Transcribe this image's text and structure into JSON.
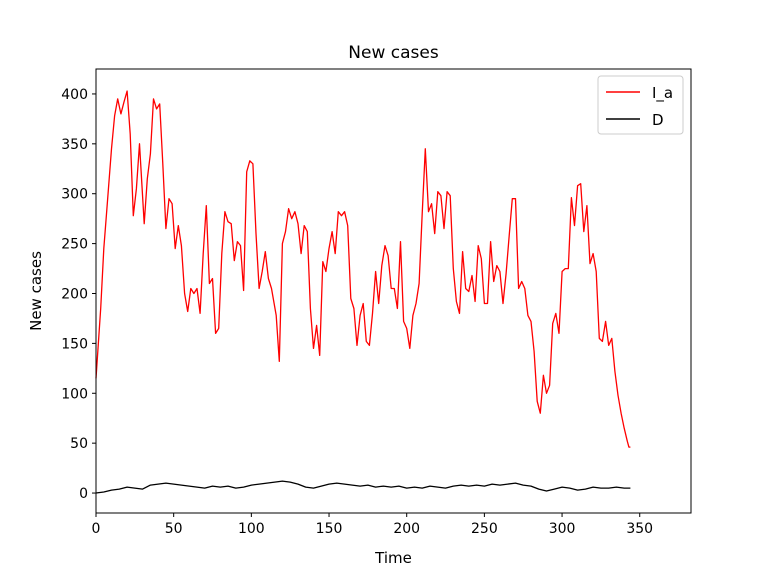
{
  "chart_data": {
    "type": "line",
    "title": "New cases",
    "xlabel": "Time",
    "ylabel": "New cases",
    "xlim": [
      0,
      383
    ],
    "ylim": [
      -20,
      425
    ],
    "xticks": [
      0,
      50,
      100,
      150,
      200,
      250,
      300,
      350
    ],
    "yticks": [
      0,
      50,
      100,
      150,
      200,
      250,
      300,
      350,
      400
    ],
    "grid": false,
    "legend_position": "top-right",
    "colors": {
      "I_a": "#ff0000",
      "D": "#000000"
    },
    "series": [
      {
        "name": "I_a",
        "color": "#ff0000",
        "points": [
          [
            0,
            115
          ],
          [
            3,
            185
          ],
          [
            5,
            245
          ],
          [
            7,
            285
          ],
          [
            10,
            345
          ],
          [
            12,
            378
          ],
          [
            14,
            395
          ],
          [
            16,
            380
          ],
          [
            18,
            392
          ],
          [
            20,
            403
          ],
          [
            22,
            360
          ],
          [
            24,
            278
          ],
          [
            26,
            305
          ],
          [
            28,
            350
          ],
          [
            31,
            270
          ],
          [
            33,
            315
          ],
          [
            35,
            340
          ],
          [
            37,
            395
          ],
          [
            39,
            385
          ],
          [
            41,
            390
          ],
          [
            43,
            330
          ],
          [
            45,
            265
          ],
          [
            47,
            295
          ],
          [
            49,
            290
          ],
          [
            51,
            245
          ],
          [
            53,
            268
          ],
          [
            55,
            248
          ],
          [
            57,
            200
          ],
          [
            59,
            182
          ],
          [
            61,
            205
          ],
          [
            63,
            200
          ],
          [
            65,
            205
          ],
          [
            67,
            180
          ],
          [
            69,
            240
          ],
          [
            71,
            288
          ],
          [
            73,
            210
          ],
          [
            75,
            215
          ],
          [
            77,
            160
          ],
          [
            79,
            165
          ],
          [
            81,
            240
          ],
          [
            83,
            282
          ],
          [
            85,
            272
          ],
          [
            87,
            270
          ],
          [
            89,
            233
          ],
          [
            91,
            252
          ],
          [
            93,
            248
          ],
          [
            95,
            203
          ],
          [
            97,
            322
          ],
          [
            99,
            333
          ],
          [
            101,
            330
          ],
          [
            103,
            260
          ],
          [
            105,
            205
          ],
          [
            107,
            222
          ],
          [
            109,
            242
          ],
          [
            111,
            215
          ],
          [
            113,
            205
          ],
          [
            116,
            178
          ],
          [
            118,
            132
          ],
          [
            120,
            250
          ],
          [
            122,
            262
          ],
          [
            124,
            285
          ],
          [
            126,
            275
          ],
          [
            128,
            282
          ],
          [
            130,
            270
          ],
          [
            132,
            240
          ],
          [
            134,
            268
          ],
          [
            136,
            262
          ],
          [
            138,
            185
          ],
          [
            140,
            145
          ],
          [
            142,
            168
          ],
          [
            144,
            138
          ],
          [
            146,
            232
          ],
          [
            148,
            222
          ],
          [
            150,
            245
          ],
          [
            152,
            262
          ],
          [
            154,
            240
          ],
          [
            156,
            282
          ],
          [
            158,
            278
          ],
          [
            160,
            282
          ],
          [
            162,
            268
          ],
          [
            164,
            195
          ],
          [
            166,
            185
          ],
          [
            168,
            148
          ],
          [
            170,
            178
          ],
          [
            172,
            190
          ],
          [
            174,
            152
          ],
          [
            176,
            148
          ],
          [
            178,
            180
          ],
          [
            180,
            222
          ],
          [
            182,
            190
          ],
          [
            184,
            228
          ],
          [
            186,
            248
          ],
          [
            188,
            238
          ],
          [
            190,
            205
          ],
          [
            192,
            205
          ],
          [
            194,
            185
          ],
          [
            196,
            252
          ],
          [
            198,
            172
          ],
          [
            200,
            165
          ],
          [
            202,
            145
          ],
          [
            204,
            178
          ],
          [
            206,
            190
          ],
          [
            208,
            210
          ],
          [
            210,
            280
          ],
          [
            212,
            345
          ],
          [
            214,
            282
          ],
          [
            216,
            290
          ],
          [
            218,
            260
          ],
          [
            220,
            302
          ],
          [
            222,
            298
          ],
          [
            224,
            265
          ],
          [
            226,
            302
          ],
          [
            228,
            298
          ],
          [
            230,
            225
          ],
          [
            232,
            192
          ],
          [
            234,
            180
          ],
          [
            236,
            242
          ],
          [
            238,
            205
          ],
          [
            240,
            202
          ],
          [
            242,
            218
          ],
          [
            244,
            192
          ],
          [
            246,
            248
          ],
          [
            248,
            235
          ],
          [
            250,
            190
          ],
          [
            252,
            190
          ],
          [
            254,
            252
          ],
          [
            256,
            212
          ],
          [
            258,
            228
          ],
          [
            260,
            222
          ],
          [
            262,
            190
          ],
          [
            264,
            220
          ],
          [
            266,
            258
          ],
          [
            268,
            295
          ],
          [
            270,
            295
          ],
          [
            272,
            205
          ],
          [
            274,
            212
          ],
          [
            276,
            205
          ],
          [
            278,
            178
          ],
          [
            280,
            172
          ],
          [
            282,
            142
          ],
          [
            284,
            92
          ],
          [
            286,
            80
          ],
          [
            288,
            118
          ],
          [
            290,
            100
          ],
          [
            292,
            108
          ],
          [
            294,
            170
          ],
          [
            296,
            180
          ],
          [
            298,
            160
          ],
          [
            300,
            222
          ],
          [
            302,
            225
          ],
          [
            304,
            225
          ],
          [
            306,
            296
          ],
          [
            308,
            268
          ],
          [
            310,
            308
          ],
          [
            312,
            310
          ],
          [
            314,
            262
          ],
          [
            316,
            288
          ],
          [
            318,
            230
          ],
          [
            320,
            240
          ],
          [
            322,
            222
          ],
          [
            324,
            155
          ],
          [
            326,
            152
          ],
          [
            328,
            172
          ],
          [
            330,
            148
          ],
          [
            332,
            155
          ],
          [
            334,
            122
          ],
          [
            336,
            98
          ],
          [
            338,
            80
          ],
          [
            340,
            65
          ],
          [
            342,
            52
          ],
          [
            343,
            46
          ],
          [
            344,
            46
          ]
        ]
      },
      {
        "name": "D",
        "color": "#000000",
        "points": [
          [
            0,
            0
          ],
          [
            5,
            1
          ],
          [
            10,
            3
          ],
          [
            15,
            4
          ],
          [
            20,
            6
          ],
          [
            25,
            5
          ],
          [
            30,
            4
          ],
          [
            35,
            8
          ],
          [
            40,
            9
          ],
          [
            45,
            10
          ],
          [
            50,
            9
          ],
          [
            55,
            8
          ],
          [
            60,
            7
          ],
          [
            65,
            6
          ],
          [
            70,
            5
          ],
          [
            75,
            7
          ],
          [
            80,
            6
          ],
          [
            85,
            7
          ],
          [
            90,
            5
          ],
          [
            95,
            6
          ],
          [
            100,
            8
          ],
          [
            105,
            9
          ],
          [
            110,
            10
          ],
          [
            115,
            11
          ],
          [
            120,
            12
          ],
          [
            125,
            11
          ],
          [
            130,
            9
          ],
          [
            135,
            6
          ],
          [
            140,
            5
          ],
          [
            145,
            7
          ],
          [
            150,
            9
          ],
          [
            155,
            10
          ],
          [
            160,
            9
          ],
          [
            165,
            8
          ],
          [
            170,
            7
          ],
          [
            175,
            8
          ],
          [
            180,
            6
          ],
          [
            185,
            7
          ],
          [
            190,
            6
          ],
          [
            195,
            7
          ],
          [
            200,
            5
          ],
          [
            205,
            6
          ],
          [
            210,
            5
          ],
          [
            215,
            7
          ],
          [
            220,
            6
          ],
          [
            225,
            5
          ],
          [
            230,
            7
          ],
          [
            235,
            8
          ],
          [
            240,
            7
          ],
          [
            245,
            8
          ],
          [
            250,
            7
          ],
          [
            255,
            9
          ],
          [
            260,
            8
          ],
          [
            265,
            9
          ],
          [
            270,
            10
          ],
          [
            275,
            8
          ],
          [
            280,
            7
          ],
          [
            285,
            4
          ],
          [
            290,
            2
          ],
          [
            295,
            4
          ],
          [
            300,
            6
          ],
          [
            305,
            5
          ],
          [
            310,
            3
          ],
          [
            315,
            4
          ],
          [
            320,
            6
          ],
          [
            325,
            5
          ],
          [
            330,
            5
          ],
          [
            335,
            6
          ],
          [
            340,
            5
          ],
          [
            344,
            5
          ]
        ]
      }
    ]
  }
}
